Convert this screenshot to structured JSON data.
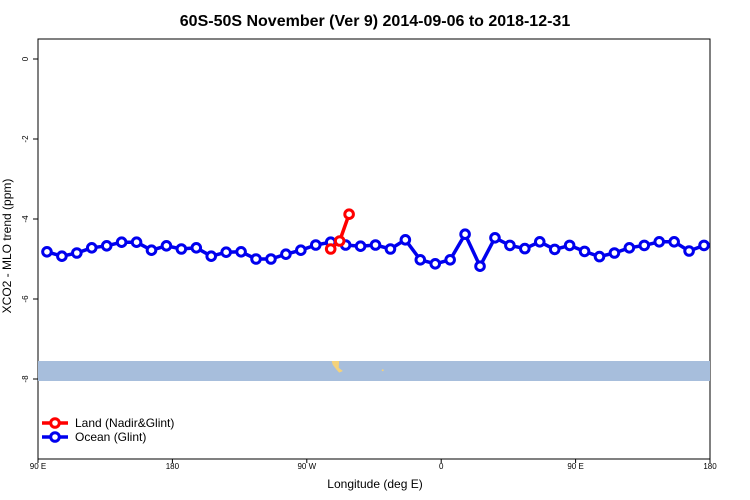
{
  "chart_data": {
    "type": "line",
    "title": "60S-50S November (Ver 9)   2014-09-06 to 2018-12-31",
    "xlabel": "Longitude (deg E)",
    "ylabel": "XCO2 - MLO trend (ppm)",
    "xlim": [
      -90,
      180
    ],
    "ylim": [
      -10,
      0.5
    ],
    "x_ticks": [
      {
        "value": -90,
        "label": "90 E"
      },
      {
        "value": -36,
        "label": "180"
      },
      {
        "value": 18,
        "label": "90 W"
      },
      {
        "value": 72,
        "label": "0"
      },
      {
        "value": 126,
        "label": "90 E"
      },
      {
        "value": 180,
        "label": "180"
      }
    ],
    "y_ticks": [
      {
        "value": 0,
        "label": "0"
      },
      {
        "value": -2,
        "label": "-2"
      },
      {
        "value": -4,
        "label": "-4"
      },
      {
        "value": -6,
        "label": "-6"
      },
      {
        "value": -8,
        "label": "-8"
      }
    ],
    "map_strip": {
      "y_top": -7.55,
      "y_bottom": -8.05,
      "color": "#a7bedc",
      "land_color": "#f5d27a"
    },
    "legend": {
      "position": "bottom-left"
    },
    "series": [
      {
        "name": "Land (Nadir&Glint)",
        "color": "#ff0000",
        "x": [
          27.6,
          31.2,
          35.0
        ],
        "y": [
          -4.75,
          -4.55,
          -3.88
        ]
      },
      {
        "name": "Ocean (Glint)",
        "color": "#0000ee",
        "x": [
          -86.4,
          -80.4,
          -74.4,
          -68.4,
          -62.4,
          -56.4,
          -50.4,
          -44.4,
          -38.4,
          -32.4,
          -26.4,
          -20.4,
          -14.4,
          -8.4,
          -2.4,
          3.6,
          9.6,
          15.6,
          21.6,
          27.6,
          33.6,
          39.6,
          45.6,
          51.6,
          57.6,
          63.6,
          69.6,
          75.6,
          81.6,
          87.6,
          93.6,
          99.6,
          105.6,
          111.6,
          117.6,
          123.6,
          129.6,
          135.6,
          141.6,
          147.6,
          153.6,
          159.6,
          165.6,
          171.6,
          177.6
        ],
        "y": [
          -4.82,
          -4.93,
          -4.85,
          -4.72,
          -4.67,
          -4.58,
          -4.58,
          -4.78,
          -4.67,
          -4.75,
          -4.72,
          -4.93,
          -4.83,
          -4.82,
          -5.0,
          -5.0,
          -4.88,
          -4.78,
          -4.65,
          -4.58,
          -4.65,
          -4.68,
          -4.65,
          -4.75,
          -4.52,
          -5.02,
          -5.12,
          -5.02,
          -4.38,
          -5.18,
          -4.47,
          -4.66,
          -4.74,
          -4.57,
          -4.76,
          -4.66,
          -4.81,
          -4.94,
          -4.85,
          -4.72,
          -4.66,
          -4.57,
          -4.57,
          -4.8,
          -4.66
        ]
      }
    ]
  }
}
